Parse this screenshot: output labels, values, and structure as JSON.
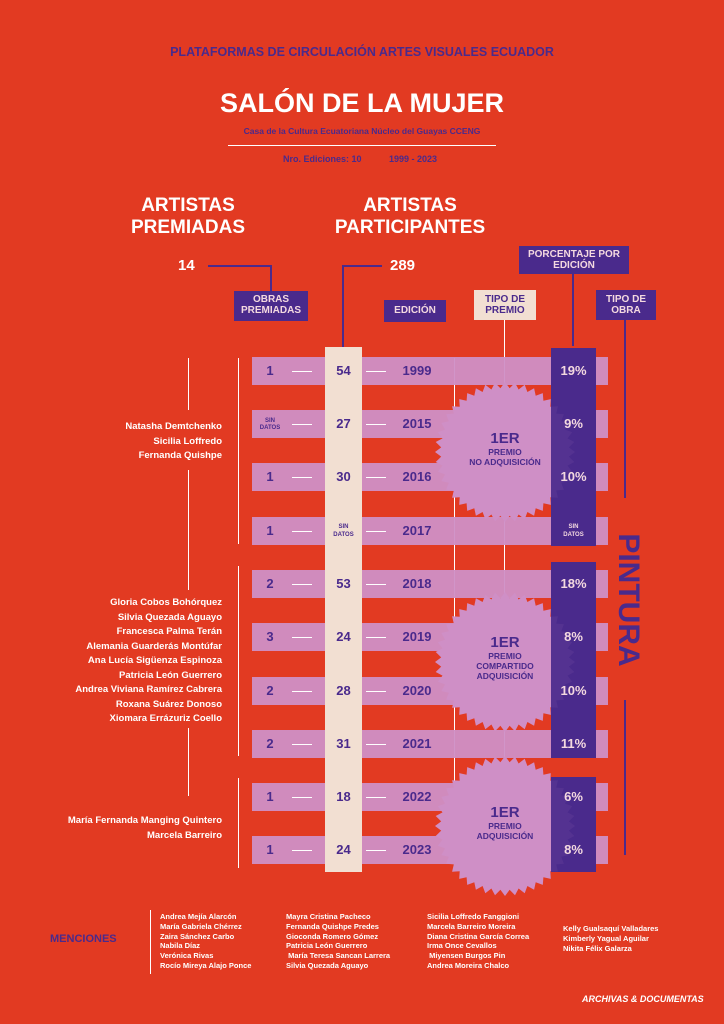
{
  "header": {
    "top": "PLATAFORMAS DE CIRCULACIÓN ARTES VISUALES ECUADOR",
    "title": "SALÓN DE LA MUJER",
    "subtitle": "Casa de la Cultura Ecuatoriana Núcleo del Guayas CCENG",
    "editions": "Nro. Ediciones: 10",
    "years": "1999 - 2023"
  },
  "premiadas": {
    "label": "ARTISTAS PREMIADAS",
    "line1": "ARTISTAS",
    "line2": "PREMIADAS",
    "count": "14"
  },
  "participantes": {
    "line1": "ARTISTAS",
    "line2": "PARTICIPANTES",
    "count": "289"
  },
  "headers": {
    "obras": "OBRAS PREMIADAS",
    "obras1": "OBRAS",
    "obras2": "PREMIADAS",
    "edicion": "EDICIÓN",
    "tipo_premio1": "TIPO DE",
    "tipo_premio2": "PREMIO",
    "porcentaje1": "PORCENTAJE POR",
    "porcentaje2": "EDICIÓN",
    "tipo_obra1": "TIPO DE",
    "tipo_obra2": "OBRA"
  },
  "rows": [
    {
      "obras": "1",
      "participantes": "54",
      "edicion": "1999",
      "porcentaje": "19%"
    },
    {
      "obras": "SIN DATOS",
      "participantes": "27",
      "edicion": "2015",
      "porcentaje": "9%"
    },
    {
      "obras": "1",
      "participantes": "30",
      "edicion": "2016",
      "porcentaje": "10%"
    },
    {
      "obras": "1",
      "participantes": "SIN DATOS",
      "edicion": "2017",
      "porcentaje": "SIN DATOS"
    },
    {
      "obras": "2",
      "participantes": "53",
      "edicion": "2018",
      "porcentaje": "18%"
    },
    {
      "obras": "3",
      "participantes": "24",
      "edicion": "2019",
      "porcentaje": "8%"
    },
    {
      "obras": "2",
      "participantes": "28",
      "edicion": "2020",
      "porcentaje": "10%"
    },
    {
      "obras": "2",
      "participantes": "31",
      "edicion": "2021",
      "porcentaje": "11%"
    },
    {
      "obras": "1",
      "participantes": "18",
      "edicion": "2022",
      "porcentaje": "6%"
    },
    {
      "obras": "1",
      "participantes": "24",
      "edicion": "2023",
      "porcentaje": "8%"
    }
  ],
  "awards": [
    {
      "big": "1ER",
      "l1": "PREMIO",
      "l2": "NO ADQUISICIÓN"
    },
    {
      "big": "1ER",
      "l1": "PREMIO",
      "l2": "COMPARTIDO",
      "l3": "ADQUISICIÓN"
    },
    {
      "big": "1ER",
      "l1": "PREMIO",
      "l2": "ADQUISICIÓN"
    }
  ],
  "tipo_obra": "PINTURA",
  "groups": [
    {
      "names": [
        "Natasha Demtchenko",
        "Sicilia Loffredo",
        "Fernanda Quishpe"
      ]
    },
    {
      "names": [
        "Gloria Cobos Bohórquez",
        "Silvia Quezada Aguayo",
        "Francesca Palma Terán",
        "Alemania Guarderás Montúfar",
        "Ana Lucía Sigüenza Espinoza",
        "Patricia León Guerrero",
        "Andrea Viviana Ramírez Cabrera",
        "Roxana Suárez Donoso",
        "Xiomara Errázuriz Coello"
      ]
    },
    {
      "names": [
        "María Fernanda Manging Quintero",
        "Marcela Barreiro"
      ]
    }
  ],
  "menciones": {
    "label": "MENCIONES",
    "col1": [
      "Andrea Mejía Alarcón",
      "María Gabriela Chérrez",
      "Zaira Sánchez Carbo",
      "Nabila Díaz",
      "Verónica Rivas",
      "Rocío Mireya Alajo Ponce"
    ],
    "col2": [
      "Mayra Cristina Pacheco",
      "Fernanda Quishpe Predes",
      "Gioconda Romero Gómez",
      "Patricia León Guerrero",
      " María Teresa Sancan Larrera",
      "Silvia Quezada Aguayo"
    ],
    "col3": [
      "Sicilia Loffredo Fanggioni",
      "Marcela Barreiro Moreira",
      "Diana Cristina García Correa",
      "Irma Once Cevallos",
      " Miyensen Burgos Pin",
      "Andrea Moreira Chalco"
    ],
    "col4": [
      "Kelly Gualsaquí Valladares",
      "Kimberly Yagual Aguilar",
      "Nikita Félix Galarza"
    ]
  },
  "logo": "ARCHIVAS & DOCUMENTAS",
  "colors": {
    "background": "#e23a22",
    "purple": "#4a2a8c",
    "pink": "#cf8fc6",
    "cream": "#f2dfd2",
    "white": "#ffffff"
  }
}
